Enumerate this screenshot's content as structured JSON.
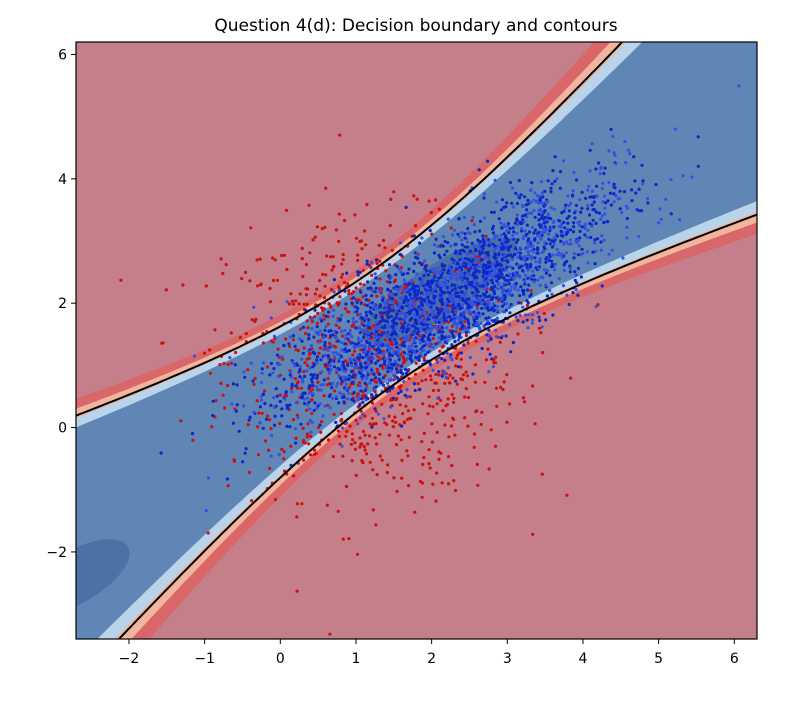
{
  "chart_data": {
    "type": "scatter",
    "title": "Question 4(d): Decision boundary and contours",
    "xlabel": "",
    "ylabel": "",
    "xlim": [
      -2.7,
      6.3
    ],
    "ylim": [
      -3.4,
      6.2
    ],
    "x_ticks": [
      -2,
      -1,
      0,
      1,
      2,
      3,
      4,
      5,
      6
    ],
    "x_tick_labels": [
      "−2",
      "−1",
      "0",
      "1",
      "2",
      "3",
      "4",
      "5",
      "6"
    ],
    "y_ticks": [
      -2,
      0,
      2,
      4,
      6
    ],
    "y_tick_labels": [
      "−2",
      "0",
      "2",
      "4",
      "6"
    ],
    "grid": false,
    "legend": "none",
    "background_class_color": "#c47f8a",
    "boundary_color": "#000000",
    "series": [
      {
        "color": "#0a28c8",
        "approx_center": [
          2.2,
          2.0
        ],
        "principal_direction": "positive slope ~0.78"
      },
      {
        "color": "#cc1010",
        "approx_center": [
          1.2,
          1.1
        ],
        "spread": "broad, roughly isotropic"
      }
    ],
    "regions": {
      "inside_color": "#5f86b5",
      "deep_inside_color": "#3a5e95",
      "edge_light_blue": "#b8d3ea",
      "edge_light_red": "#f1b49c",
      "edge_red": "#d9676a"
    }
  }
}
